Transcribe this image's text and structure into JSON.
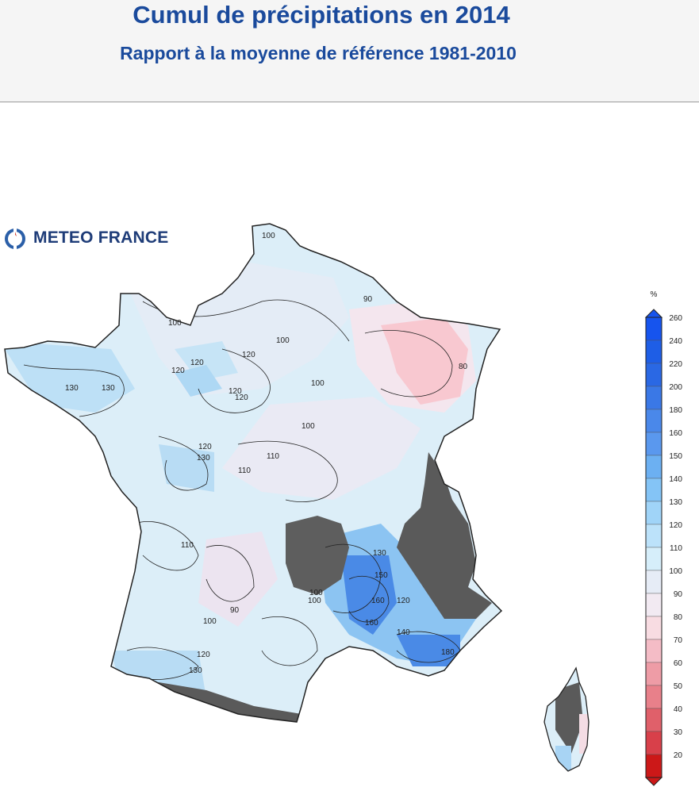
{
  "header": {
    "title": "Cumul de précipitations en 2014",
    "subtitle": "Rapport à la moyenne de référence 1981-2010"
  },
  "logo": {
    "text": "METEO FRANCE",
    "icon": "meteo-france-logo-icon"
  },
  "legend": {
    "unit": "%",
    "labels": [
      "260",
      "240",
      "220",
      "200",
      "180",
      "160",
      "150",
      "140",
      "130",
      "120",
      "110",
      "100",
      "90",
      "80",
      "70",
      "60",
      "50",
      "40",
      "30",
      "20"
    ],
    "colors": [
      "#1654ee",
      "#1e5ee6",
      "#2a68e4",
      "#3a78e6",
      "#4a88ea",
      "#5a98ee",
      "#6cb0f2",
      "#84c4f6",
      "#a0d4f8",
      "#bce2fa",
      "#d6eefa",
      "#e6ecf6",
      "#f2eaf2",
      "#f8dce2",
      "#f4bcc6",
      "#ee9ca6",
      "#e8808a",
      "#e0606a",
      "#d8404a",
      "#cc1818"
    ]
  },
  "map": {
    "contour_labels": [
      "100",
      "90",
      "100",
      "120",
      "130",
      "130",
      "120",
      "120",
      "100",
      "120",
      "120",
      "80",
      "100",
      "100",
      "120",
      "130",
      "110",
      "110",
      "100",
      "130",
      "150",
      "160",
      "160",
      "120",
      "140",
      "180",
      "100",
      "90",
      "120",
      "130",
      "110",
      "100"
    ],
    "colors": {
      "land_base": "#dceef8",
      "wetter": "#b8dcf4",
      "much_wetter": "#4a8ae6",
      "drier": "#f8c8d0",
      "near_normal": "#eceaf4",
      "relief": "#5a5a5a",
      "border": "#222222"
    }
  }
}
